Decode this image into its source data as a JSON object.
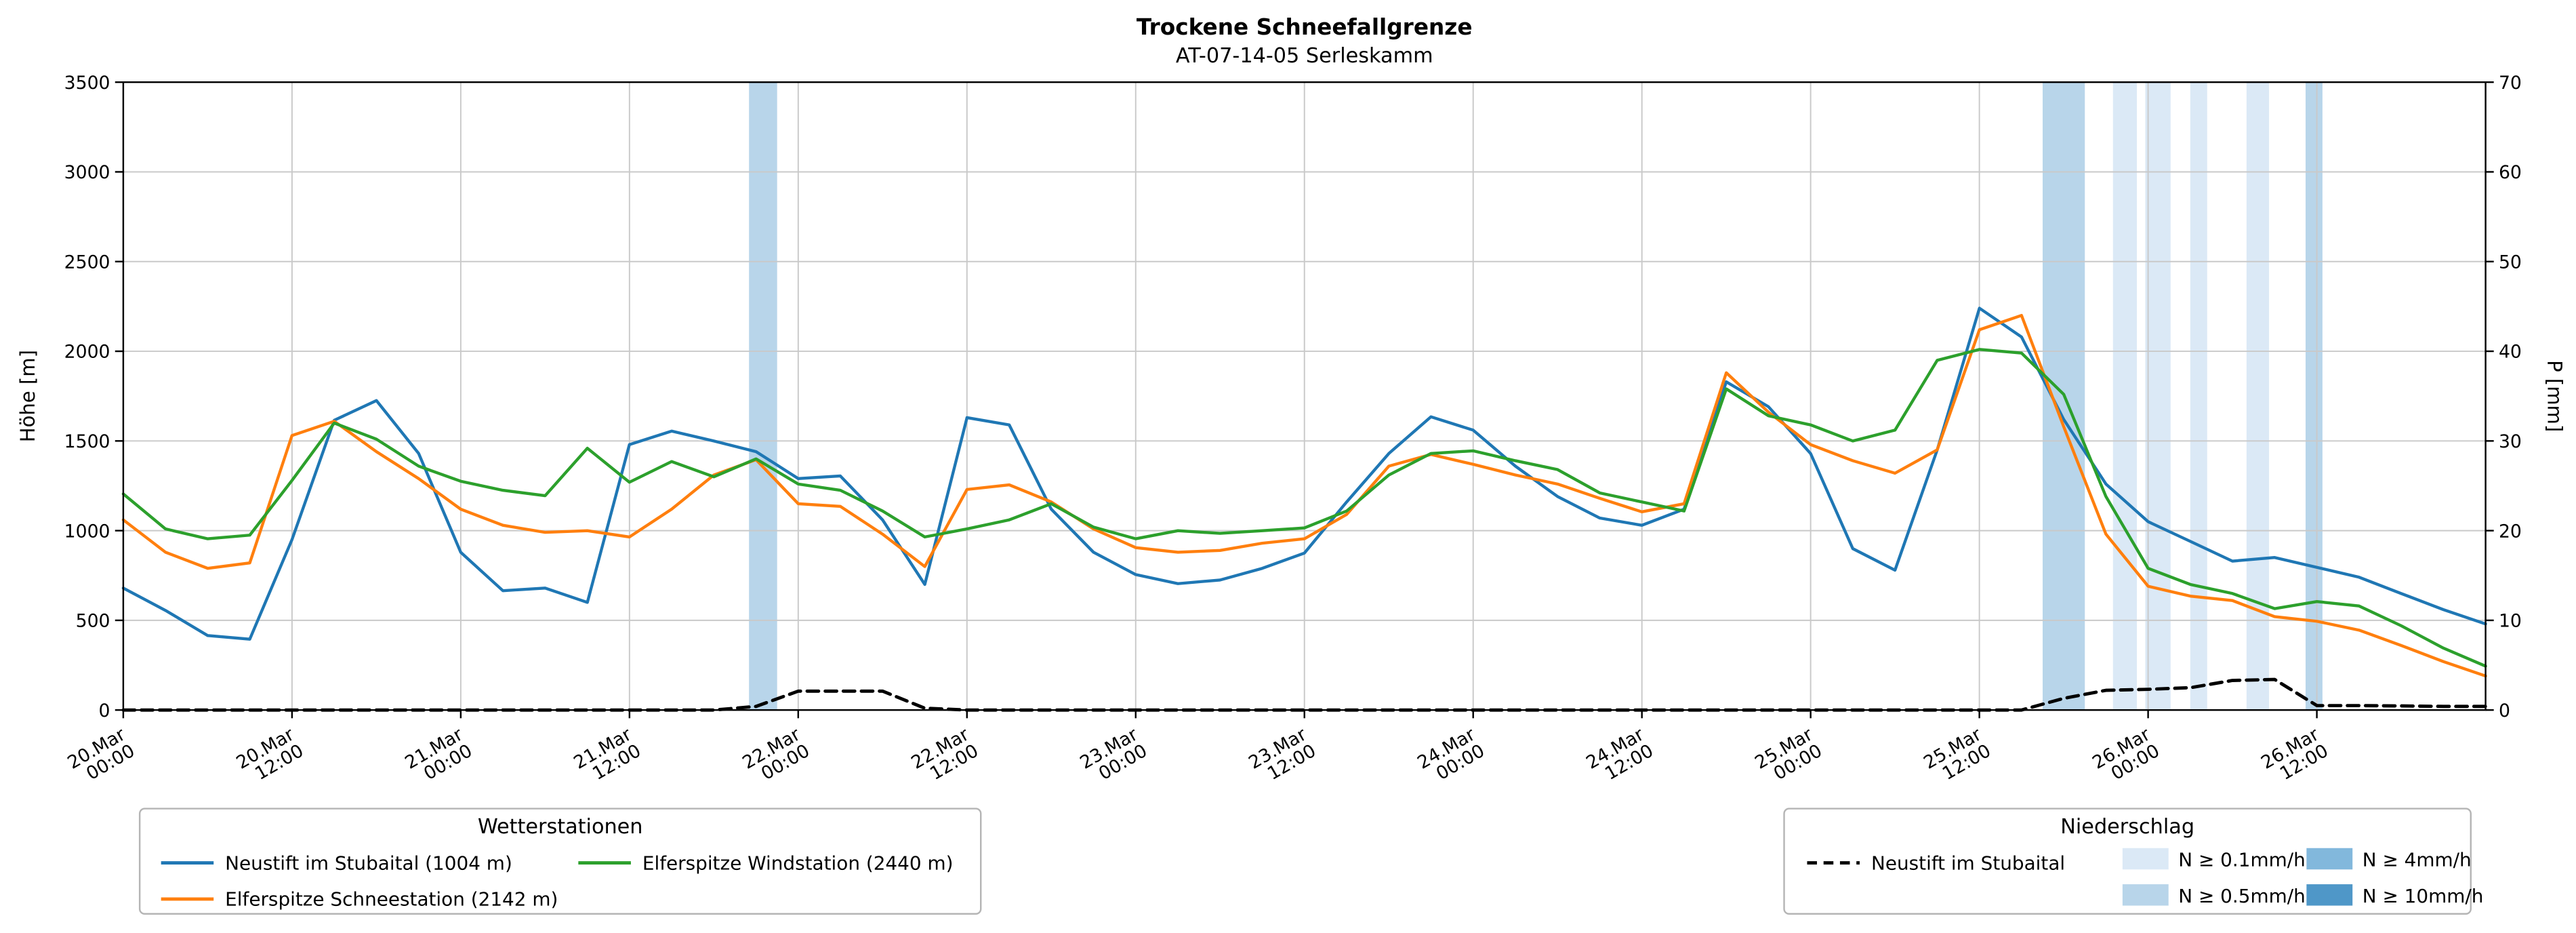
{
  "title": "Trockene Schneefallgrenze",
  "subtitle": "AT-07-14-05 Serleskamm",
  "axes": {
    "y_left": {
      "label": "Höhe [m]",
      "min": 0,
      "max": 3500,
      "ticks": [
        0,
        500,
        1000,
        1500,
        2000,
        2500,
        3000,
        3500
      ]
    },
    "y_right": {
      "label": "P [mm]",
      "min": 0,
      "max": 70,
      "ticks": [
        0,
        10,
        20,
        30,
        40,
        50,
        60,
        70
      ]
    },
    "x": {
      "domain_hours": [
        0,
        168
      ],
      "tick_hours": [
        0,
        12,
        24,
        36,
        48,
        60,
        72,
        84,
        96,
        108,
        120,
        132,
        144,
        156
      ],
      "tick_labels": [
        "20.Mar 00:00",
        "20.Mar 12:00",
        "21.Mar 00:00",
        "21.Mar 12:00",
        "22.Mar 00:00",
        "22.Mar 12:00",
        "23.Mar 00:00",
        "23.Mar 12:00",
        "24.Mar 00:00",
        "24.Mar 12:00",
        "25.Mar 00:00",
        "25.Mar 12:00",
        "26.Mar 00:00",
        "26.Mar 12:00"
      ]
    }
  },
  "legend_stations": {
    "title": "Wetterstationen"
  },
  "legend_precip": {
    "title": "Niederschlag",
    "line_label": "Neustift im Stubaital",
    "bands": [
      {
        "label": "N ≥ 0.1mm/h",
        "level": "0.1",
        "color": "#dbe9f6"
      },
      {
        "label": "N ≥ 0.5mm/h",
        "level": "0.5",
        "color": "#b8d5ea"
      },
      {
        "label": "N ≥ 4mm/h",
        "level": "4",
        "color": "#82b8dc"
      },
      {
        "label": "N ≥ 10mm/h",
        "level": "10",
        "color": "#4f97c8"
      }
    ]
  },
  "chart_data": {
    "type": "line",
    "x_unit": "hours since 20.Mar 00:00",
    "x_hours": [
      0,
      3,
      6,
      9,
      12,
      15,
      18,
      21,
      24,
      27,
      30,
      33,
      36,
      39,
      42,
      45,
      48,
      51,
      54,
      57,
      60,
      63,
      66,
      69,
      72,
      75,
      78,
      81,
      84,
      87,
      90,
      93,
      96,
      99,
      102,
      105,
      108,
      111,
      114,
      117,
      120,
      123,
      126,
      129,
      132,
      135,
      138,
      141,
      144,
      147,
      150,
      153,
      156,
      159,
      162,
      165,
      168
    ],
    "series": [
      {
        "name": "Neustift im Stubaital (1004 m)",
        "color": "#1f77b4",
        "axis": "left",
        "style": "solid",
        "values": [
          680,
          555,
          415,
          395,
          950,
          1615,
          1725,
          1430,
          880,
          665,
          680,
          600,
          1480,
          1555,
          1500,
          1440,
          1290,
          1305,
          1060,
          700,
          1630,
          1590,
          1120,
          880,
          755,
          705,
          725,
          790,
          875,
          1160,
          1430,
          1635,
          1560,
          1360,
          1190,
          1070,
          1030,
          1120,
          1830,
          1690,
          1430,
          900,
          780,
          1450,
          2240,
          2080,
          1620,
          1260,
          1050,
          940,
          830,
          850,
          795,
          740,
          650,
          560,
          480
        ]
      },
      {
        "name": "Elferspitze Schneestation (2142 m)",
        "color": "#ff7f0e",
        "axis": "left",
        "style": "solid",
        "values": [
          1060,
          880,
          790,
          820,
          1530,
          1610,
          1440,
          1290,
          1120,
          1030,
          990,
          1000,
          965,
          1120,
          1310,
          1395,
          1150,
          1135,
          980,
          800,
          1230,
          1255,
          1160,
          1010,
          905,
          880,
          890,
          930,
          955,
          1090,
          1360,
          1425,
          1370,
          1310,
          1260,
          1180,
          1105,
          1150,
          1880,
          1660,
          1480,
          1390,
          1320,
          1450,
          2120,
          2200,
          1580,
          980,
          690,
          635,
          610,
          520,
          495,
          445,
          360,
          270,
          190
        ]
      },
      {
        "name": "Elferspitze Windstation (2440 m)",
        "color": "#2ca02c",
        "axis": "left",
        "style": "solid",
        "values": [
          1205,
          1010,
          955,
          975,
          1280,
          1600,
          1510,
          1360,
          1275,
          1225,
          1195,
          1460,
          1270,
          1385,
          1300,
          1400,
          1260,
          1225,
          1110,
          965,
          1010,
          1060,
          1150,
          1020,
          955,
          1000,
          985,
          1000,
          1015,
          1110,
          1310,
          1430,
          1445,
          1390,
          1340,
          1210,
          1160,
          1110,
          1790,
          1640,
          1590,
          1500,
          1560,
          1950,
          2010,
          1990,
          1760,
          1190,
          790,
          700,
          650,
          565,
          605,
          580,
          470,
          345,
          245
        ]
      },
      {
        "name": "Neustift im Stubaital",
        "color": "#000000",
        "axis": "right",
        "style": "dashed",
        "values": [
          0,
          0,
          0,
          0,
          0,
          0,
          0,
          0,
          0,
          0,
          0,
          0,
          0,
          0,
          0,
          0.4,
          2.1,
          2.1,
          2.1,
          0.2,
          0,
          0,
          0,
          0,
          0,
          0,
          0,
          0,
          0,
          0,
          0,
          0,
          0,
          0,
          0,
          0,
          0,
          0,
          0,
          0,
          0,
          0,
          0,
          0,
          0,
          0,
          1.3,
          2.2,
          2.3,
          2.5,
          3.3,
          3.4,
          0.5,
          0.5,
          0.45,
          0.4,
          0.4
        ]
      }
    ],
    "precip_band_colors": {
      "0.1": "#dbe9f6",
      "0.5": "#b8d5ea",
      "4": "#82b8dc",
      "10": "#4f97c8"
    },
    "precip_bands": [
      {
        "start_hour": 44.5,
        "end_hour": 46.5,
        "level": "0.5"
      },
      {
        "start_hour": 136.5,
        "end_hour": 139.5,
        "level": "0.5"
      },
      {
        "start_hour": 141.5,
        "end_hour": 143.2,
        "level": "0.1"
      },
      {
        "start_hour": 143.8,
        "end_hour": 145.6,
        "level": "0.1"
      },
      {
        "start_hour": 147.0,
        "end_hour": 148.2,
        "level": "0.1"
      },
      {
        "start_hour": 151.0,
        "end_hour": 152.6,
        "level": "0.1"
      },
      {
        "start_hour": 155.2,
        "end_hour": 156.4,
        "level": "0.5"
      }
    ],
    "grid": true,
    "legend_position": "below"
  }
}
